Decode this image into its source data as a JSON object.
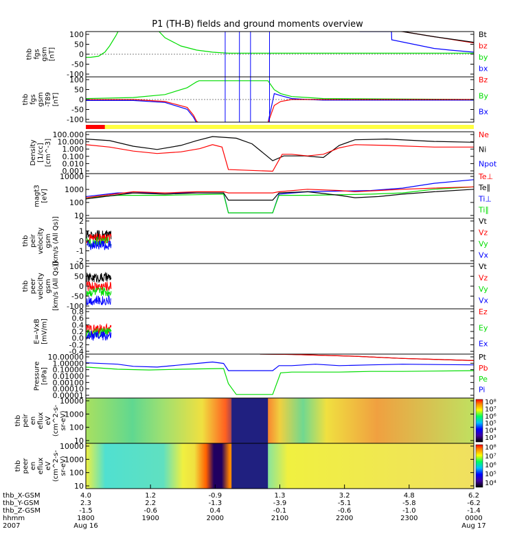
{
  "title": "P1 (TH-B) fields and ground moments overview",
  "colors": {
    "black": "#000000",
    "red": "#ff0000",
    "green": "#00dd00",
    "blue": "#0000ff"
  },
  "chart_data": [
    {
      "type": "line",
      "id": "fgs",
      "ylabel": [
        "thb",
        "fgs",
        "gsm",
        "[nT]"
      ],
      "yticks": [
        "100",
        "50",
        "0",
        "-50",
        "-100"
      ],
      "ylim": [
        -110,
        110
      ],
      "legend": [
        {
          "name": "Bt",
          "color": "black"
        },
        {
          "name": "bz",
          "color": "red"
        },
        {
          "name": "by",
          "color": "green"
        },
        {
          "name": "bx",
          "color": "blue"
        }
      ],
      "series": [
        {
          "name": "bx",
          "color": "blue",
          "t": [
            17.3,
            19.3,
            19.32,
            22,
            23,
            24.5
          ],
          "v": [
            110,
            110,
            70,
            28,
            20,
            10
          ]
        },
        {
          "name": "by",
          "color": "green",
          "t": [
            0,
            0.3,
            0.8,
            1.2,
            1.5,
            1.9,
            2.1,
            4.5,
            5,
            6,
            7,
            8,
            9,
            9.5,
            24.5
          ],
          "v": [
            -15,
            -15,
            -10,
            10,
            40,
            90,
            120,
            120,
            80,
            40,
            20,
            10,
            5,
            5,
            5
          ]
        },
        {
          "name": "bz",
          "color": "red",
          "t": [
            17.3,
            20,
            22,
            24.5
          ],
          "v": [
            120,
            110,
            85,
            55
          ]
        },
        {
          "name": "Bt",
          "color": "black",
          "t": [
            17.3,
            20,
            22,
            24.5
          ],
          "v": [
            120,
            110,
            85,
            58
          ]
        }
      ]
    },
    {
      "type": "line",
      "id": "fgs_rot",
      "ylabel": [
        "thb",
        "fgs",
        "gsm",
        "-T89",
        "[nT]"
      ],
      "yticks": [
        "100",
        "50",
        "0",
        "-50",
        "-100"
      ],
      "ylim": [
        -115,
        115
      ],
      "legend": [
        {
          "name": "Bz",
          "color": "red"
        },
        {
          "name": "By",
          "color": "green"
        },
        {
          "name": "Bx",
          "color": "blue"
        }
      ],
      "series": [
        {
          "name": "Bx",
          "color": "blue",
          "t": [
            0,
            3,
            5,
            6.4,
            6.8,
            7.0,
            7.15,
            11.5,
            11.9,
            12.3,
            13,
            14,
            15,
            24.5
          ],
          "v": [
            -5,
            -5,
            -15,
            -50,
            -90,
            -120,
            -120,
            -120,
            30,
            20,
            5,
            0,
            -3,
            -3
          ]
        },
        {
          "name": "By",
          "color": "green",
          "t": [
            0,
            3,
            5,
            6.4,
            6.8,
            7.0,
            7.15,
            11.5,
            11.9,
            12.3,
            13,
            14,
            15,
            24.5
          ],
          "v": [
            5,
            10,
            25,
            60,
            80,
            90,
            95,
            95,
            50,
            30,
            15,
            10,
            5,
            0
          ]
        },
        {
          "name": "Bz",
          "color": "red",
          "t": [
            0,
            3,
            5,
            6.4,
            6.8,
            7.0,
            7.15,
            11.5,
            11.9,
            12.3,
            13,
            14,
            15,
            24.5
          ],
          "v": [
            0,
            0,
            -10,
            -40,
            -80,
            -110,
            -120,
            -120,
            -30,
            -10,
            0,
            0,
            0,
            0
          ]
        }
      ]
    },
    {
      "type": "line",
      "id": "density",
      "log": true,
      "ylabel": [
        "Density",
        "[1/cc]",
        "[cm^-3]"
      ],
      "yticks": [
        "100.000",
        "10.000",
        "1.000",
        "0.100",
        "0.010",
        "0.001"
      ],
      "ylim": [
        -3,
        2.2
      ],
      "legend": [
        {
          "name": "Ne",
          "color": "red"
        },
        {
          "name": "Ni",
          "color": "black"
        },
        {
          "name": "Npot",
          "color": "blue"
        }
      ],
      "series": [
        {
          "name": "Ni",
          "color": "black",
          "t": [
            0,
            1.5,
            3,
            4.5,
            6,
            7,
            8,
            9.5,
            10.5,
            11.8,
            12.5,
            13.8,
            15,
            16,
            17,
            19,
            22,
            24.5
          ],
          "v": [
            1.3,
            1.1,
            0.4,
            0.0,
            0.5,
            1.1,
            1.6,
            1.4,
            0.7,
            -1.4,
            -0.8,
            -0.8,
            -1.0,
            0.5,
            1.2,
            1.3,
            1.0,
            0.9
          ]
        },
        {
          "name": "Ne",
          "color": "red",
          "t": [
            0,
            1.5,
            3,
            4.5,
            6,
            7.2,
            8,
            8.6,
            9,
            11.8,
            12.4,
            13,
            14,
            15,
            16,
            17,
            19,
            22,
            24.5
          ],
          "v": [
            0.6,
            0.3,
            -0.2,
            -0.5,
            -0.3,
            0.1,
            0.6,
            0.3,
            -2.5,
            -2.7,
            -0.6,
            -0.6,
            -0.8,
            -0.6,
            0.2,
            0.6,
            0.5,
            0.3,
            0.3
          ]
        }
      ]
    },
    {
      "type": "line",
      "id": "magt3",
      "log": true,
      "ylabel": [
        "magt3",
        "[eV]"
      ],
      "yticks": [
        "10000",
        "1000",
        "100",
        "10"
      ],
      "ylim": [
        0.5,
        4.2
      ],
      "legend": [
        {
          "name": "Te⊥",
          "color": "red"
        },
        {
          "name": "Te∥",
          "color": "black"
        },
        {
          "name": "Ti⊥",
          "color": "blue"
        },
        {
          "name": "Ti∥",
          "color": "green"
        }
      ],
      "series": [
        {
          "name": "Ti⊥",
          "color": "blue",
          "t": [
            0,
            2,
            5,
            8.7,
            9,
            11.8,
            12.2,
            14,
            18,
            20,
            22,
            24.5
          ],
          "v": [
            2.3,
            2.6,
            2.6,
            2.6,
            0.95,
            0.95,
            2.5,
            2.7,
            2.8,
            3.0,
            3.4,
            3.7
          ]
        },
        {
          "name": "Ti∥",
          "color": "green",
          "t": [
            0,
            2,
            5,
            8.7,
            9,
            11.8,
            12.2,
            14,
            18,
            20,
            22,
            24.5
          ],
          "v": [
            2.2,
            2.4,
            2.4,
            2.5,
            0.95,
            0.95,
            2.4,
            2.4,
            2.5,
            2.6,
            2.9,
            3.1
          ]
        },
        {
          "name": "Te∥",
          "color": "black",
          "t": [
            0,
            3,
            5,
            7,
            8.7,
            9,
            11.8,
            12.2,
            14,
            16,
            17,
            18.5,
            20,
            22,
            24.5
          ],
          "v": [
            2.1,
            2.6,
            2.5,
            2.6,
            2.6,
            2.0,
            2.0,
            2.6,
            2.7,
            2.4,
            2.2,
            2.3,
            2.5,
            2.7,
            2.9
          ]
        },
        {
          "name": "Te⊥",
          "color": "red",
          "t": [
            0,
            3,
            5,
            7,
            8.7,
            9,
            11.8,
            12.2,
            14,
            16,
            17,
            18.5,
            20,
            22,
            24.5
          ],
          "v": [
            2.2,
            2.7,
            2.6,
            2.7,
            2.7,
            2.6,
            2.6,
            2.7,
            2.9,
            2.8,
            2.7,
            2.8,
            2.9,
            3.0,
            3.1
          ]
        }
      ]
    },
    {
      "type": "line",
      "id": "peir_vel",
      "ylabel": [
        "thb",
        "peir",
        "velocity",
        "gsm",
        "[km/s (All Qs)]"
      ],
      "yticks": [
        "2",
        "1",
        "0",
        "-1",
        "-2"
      ],
      "ylim": [
        -2.8,
        2.8
      ],
      "legend": [
        {
          "name": "Vt",
          "color": "black"
        },
        {
          "name": "Vz",
          "color": "red"
        },
        {
          "name": "Vy",
          "color": "green"
        },
        {
          "name": "Vx",
          "color": "blue"
        }
      ]
    },
    {
      "type": "line",
      "id": "peer_vel",
      "ylabel": [
        "thb",
        "peer",
        "velocity",
        "gsm",
        "[km/s (All Qs)]"
      ],
      "yticks": [
        "100",
        "50",
        "0",
        "-50",
        "-100"
      ],
      "ylim": [
        -130,
        130
      ],
      "legend": [
        {
          "name": "Vt",
          "color": "black"
        },
        {
          "name": "Vz",
          "color": "red"
        },
        {
          "name": "Vy",
          "color": "green"
        },
        {
          "name": "Vx",
          "color": "blue"
        }
      ]
    },
    {
      "type": "line",
      "id": "efield",
      "ylabel": [
        "E=-VxB",
        "[mV/m]"
      ],
      "yticks": [
        "0.8",
        "0.6",
        "0.4",
        "0.2",
        "0.0",
        "-0.2",
        "-0.4"
      ],
      "ylim": [
        -0.45,
        0.85
      ],
      "legend": [
        {
          "name": "Ez",
          "color": "red"
        },
        {
          "name": "Ey",
          "color": "green"
        },
        {
          "name": "Ex",
          "color": "blue"
        }
      ]
    },
    {
      "type": "line",
      "id": "pressure",
      "log": true,
      "ylabel": [
        "Pressure",
        "[nPa]"
      ],
      "yticks": [
        "10.00000",
        "1.00000",
        "0.10000",
        "0.01000",
        "0.00100",
        "0.00010",
        "0.00001"
      ],
      "ylim": [
        -5,
        1.1
      ],
      "legend": [
        {
          "name": "Pt",
          "color": "black"
        },
        {
          "name": "Pb",
          "color": "red"
        },
        {
          "name": "Pe",
          "color": "green"
        },
        {
          "name": "Pi",
          "color": "blue"
        }
      ],
      "series": [
        {
          "name": "Pt",
          "color": "black",
          "t": [
            11,
            13,
            17,
            20,
            24.5
          ],
          "v": [
            1.1,
            1.05,
            0.8,
            0.5,
            0.2
          ]
        },
        {
          "name": "Pb",
          "color": "red",
          "t": [
            11,
            13,
            17,
            20,
            24.5
          ],
          "v": [
            1.1,
            1.05,
            0.8,
            0.5,
            0.2
          ]
        },
        {
          "name": "Pi",
          "color": "blue",
          "t": [
            0,
            2,
            3,
            4.5,
            6,
            7,
            8,
            8.7,
            9,
            11.8,
            12.2,
            13,
            14.5,
            16,
            18,
            20,
            24.5
          ],
          "v": [
            -0.1,
            -0.3,
            -0.6,
            -0.7,
            -0.4,
            -0.2,
            0,
            -0.2,
            -1.2,
            -1.2,
            -0.5,
            -0.5,
            -0.3,
            -0.5,
            -0.4,
            -0.3,
            -0.4
          ]
        },
        {
          "name": "Pe",
          "color": "green",
          "t": [
            0,
            2,
            4,
            6,
            8.7,
            9,
            9.5,
            11.8,
            12.3,
            13,
            14,
            16,
            18,
            20,
            24.5
          ],
          "v": [
            -0.7,
            -1.0,
            -1.1,
            -1.0,
            -0.9,
            -3.0,
            -4.5,
            -4.5,
            -1.5,
            -1.4,
            -1.4,
            -1.4,
            -1.3,
            -1.3,
            -1.2
          ]
        }
      ]
    },
    {
      "type": "heatmap",
      "id": "peir_spec",
      "ylabel": [
        "thb",
        "peir",
        "en",
        "eflux",
        "eV",
        "(cm^2-s-",
        "sr-eV)"
      ],
      "yticks": [
        "10000",
        "1000",
        "100",
        "10"
      ],
      "colorbar_labels": [
        "10⁸",
        "10⁷",
        "10⁶",
        "10⁵",
        "10⁴",
        "10³"
      ]
    },
    {
      "type": "heatmap",
      "id": "peer_spec",
      "ylabel": [
        "thb",
        "peer",
        "en",
        "eflux",
        "eV",
        "(cm^2-s-",
        "sr-eV)"
      ],
      "yticks": [
        "10000",
        "1000",
        "100",
        "10"
      ],
      "colorbar_labels": [
        "10⁸",
        "10⁷",
        "10⁶",
        "10⁵",
        "10⁴"
      ]
    }
  ],
  "xaxis": {
    "row_labels": [
      "thb_X-GSM",
      "thb_Y-GSM",
      "thb_Z-GSM",
      "hhmm",
      "2007"
    ],
    "columns": [
      [
        "4.0",
        "2.3",
        "-1.5",
        "1800",
        "Aug 16"
      ],
      [
        "1.2",
        "2.2",
        "-0.6",
        "1900",
        ""
      ],
      [
        "-0.9",
        "-1.3",
        "0.4",
        "2000",
        ""
      ],
      [
        "1.3",
        "-3.9",
        "-0.1",
        "2100",
        ""
      ],
      [
        "3.2",
        "-5.1",
        "-0.6",
        "2200",
        ""
      ],
      [
        "4.8",
        "-5.8",
        "-1.0",
        "2300",
        ""
      ],
      [
        "6.2",
        "-6.2",
        "-1.4",
        "0000",
        "Aug 17"
      ]
    ]
  }
}
